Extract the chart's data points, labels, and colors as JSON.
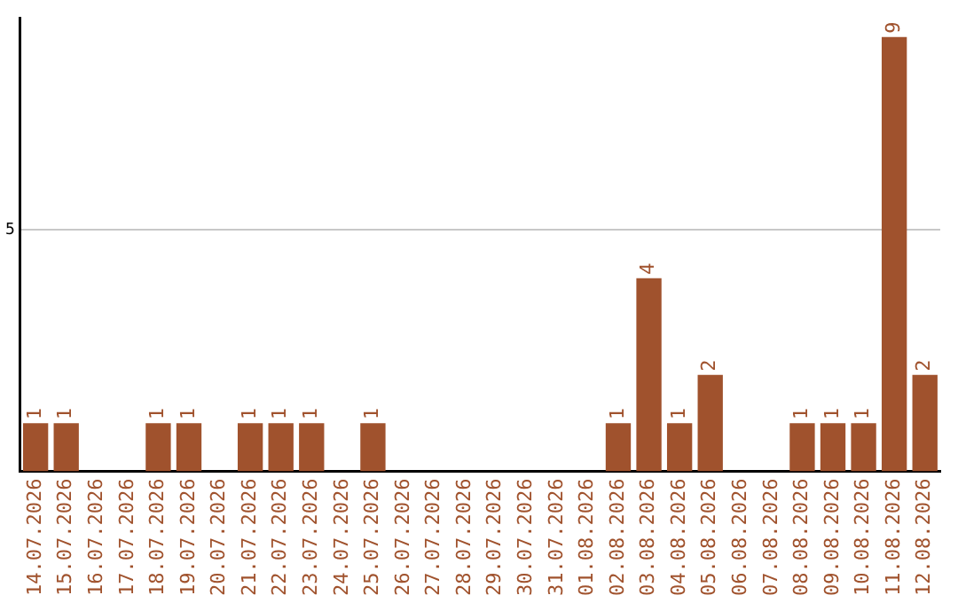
{
  "chart_data": {
    "type": "bar",
    "categories": [
      "14.07.2026",
      "15.07.2026",
      "16.07.2026",
      "17.07.2026",
      "18.07.2026",
      "19.07.2026",
      "20.07.2026",
      "21.07.2026",
      "22.07.2026",
      "23.07.2026",
      "24.07.2026",
      "25.07.2026",
      "26.07.2026",
      "27.07.2026",
      "28.07.2026",
      "29.07.2026",
      "30.07.2026",
      "31.07.2026",
      "01.08.2026",
      "02.08.2026",
      "03.08.2026",
      "04.08.2026",
      "05.08.2026",
      "06.08.2026",
      "07.08.2026",
      "08.08.2026",
      "09.08.2026",
      "10.08.2026",
      "11.08.2026",
      "12.08.2026"
    ],
    "values": [
      1,
      1,
      0,
      0,
      1,
      1,
      0,
      1,
      1,
      1,
      0,
      1,
      0,
      0,
      0,
      0,
      0,
      0,
      0,
      1,
      4,
      1,
      2,
      0,
      0,
      1,
      1,
      1,
      9,
      2
    ],
    "value_labels": [
      "1",
      "1",
      null,
      null,
      "1",
      "1",
      null,
      "1",
      "1",
      "1",
      null,
      "1",
      null,
      null,
      null,
      null,
      null,
      null,
      null,
      "1",
      "4",
      "1",
      "2",
      null,
      null,
      "1",
      "1",
      "1",
      "9",
      "2"
    ],
    "color": "#a0522d",
    "ylim": [
      0,
      9.4
    ],
    "yticks": [
      5
    ],
    "grid": "y"
  }
}
